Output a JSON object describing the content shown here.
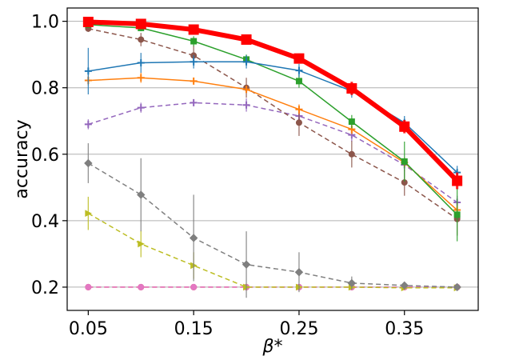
{
  "chart_data": {
    "type": "line",
    "xlabel": "β*",
    "ylabel": "accuracy",
    "x_ticks": [
      0.05,
      0.15,
      0.25,
      0.35
    ],
    "x_tick_labels": [
      "0.05",
      "0.15",
      "0.25",
      "0.35"
    ],
    "y_ticks": [
      0.2,
      0.4,
      0.6,
      0.8,
      1.0
    ],
    "y_tick_labels": [
      "0.2",
      "0.4",
      "0.6",
      "0.8",
      "1.0"
    ],
    "xlim": [
      0.03,
      0.42
    ],
    "ylim": [
      0.13,
      1.04
    ],
    "grid": "horizontal",
    "x": [
      0.05,
      0.1,
      0.15,
      0.2,
      0.25,
      0.3,
      0.35,
      0.4
    ],
    "series": [
      {
        "color": "#ff0000",
        "dashed": false,
        "width": 6,
        "marker": "square",
        "values": [
          0.998,
          0.992,
          0.975,
          0.945,
          0.888,
          0.798,
          0.683,
          0.52
        ],
        "err": [
          0.008,
          0.008,
          0.01,
          0.012,
          0.015,
          0.02,
          0.02,
          0.025
        ]
      },
      {
        "color": "#1f77b4",
        "dashed": false,
        "width": 1.5,
        "marker": "plus",
        "values": [
          0.85,
          0.875,
          0.878,
          0.878,
          0.852,
          0.79,
          0.695,
          0.545
        ],
        "err": [
          0.07,
          0.03,
          0.02,
          0.02,
          0.02,
          0.02,
          0.02,
          0.02
        ]
      },
      {
        "color": "#2ca02c",
        "dashed": false,
        "width": 1.5,
        "marker": "square",
        "values": [
          0.99,
          0.98,
          0.94,
          0.885,
          0.82,
          0.698,
          0.578,
          0.418
        ],
        "err": [
          0.01,
          0.01,
          0.015,
          0.015,
          0.02,
          0.02,
          0.06,
          0.08
        ]
      },
      {
        "color": "#ff7f0e",
        "dashed": false,
        "width": 1.5,
        "marker": "plus",
        "values": [
          0.822,
          0.83,
          0.82,
          0.795,
          0.735,
          0.675,
          0.575,
          0.432
        ],
        "err": [
          0.015,
          0.015,
          0.01,
          0.01,
          0.015,
          0.015,
          0.015,
          0.02
        ]
      },
      {
        "color": "#8c564b",
        "dashed": true,
        "width": 1.5,
        "marker": "circle",
        "values": [
          0.978,
          0.945,
          0.897,
          0.8,
          0.695,
          0.6,
          0.515,
          0.405
        ],
        "err": [
          0.01,
          0.02,
          0.03,
          0.03,
          0.04,
          0.04,
          0.04,
          0.05
        ]
      },
      {
        "color": "#9467bd",
        "dashed": true,
        "width": 1.5,
        "marker": "plus",
        "values": [
          0.69,
          0.74,
          0.755,
          0.748,
          0.715,
          0.658,
          0.568,
          0.455
        ],
        "err": [
          0.015,
          0.015,
          0.01,
          0.02,
          0.02,
          0.02,
          0.02,
          0.02
        ]
      },
      {
        "color": "#7f7f7f",
        "dashed": true,
        "width": 1.5,
        "marker": "diamond",
        "values": [
          0.573,
          0.478,
          0.348,
          0.268,
          0.245,
          0.212,
          0.205,
          0.2
        ],
        "err": [
          0.06,
          0.11,
          0.13,
          0.1,
          0.06,
          0.02,
          0.01,
          0.005
        ]
      },
      {
        "color": "#bcbd22",
        "dashed": true,
        "width": 1.5,
        "marker": "triangle-right",
        "values": [
          0.422,
          0.33,
          0.265,
          0.2,
          0.2,
          0.2,
          0.198,
          0.198
        ],
        "err": [
          0.05,
          0.04,
          0.04,
          0.01,
          0.005,
          0.005,
          0.005,
          0.005
        ]
      },
      {
        "color": "#e377c2",
        "dashed": true,
        "width": 1.5,
        "marker": "circle",
        "values": [
          0.2,
          0.2,
          0.2,
          0.2,
          0.2,
          0.2,
          0.2,
          0.2
        ],
        "err": [
          0.005,
          0.005,
          0.005,
          0.005,
          0.005,
          0.005,
          0.005,
          0.005
        ]
      },
      {
        "color": "#d62728",
        "dashed": true,
        "width": 1.5,
        "marker": "circle",
        "values": [
          0.2,
          0.2,
          0.2,
          0.2,
          0.2,
          0.2,
          0.2,
          0.2
        ],
        "err": [
          0.004,
          0.004,
          0.004,
          0.004,
          0.004,
          0.004,
          0.004,
          0.004
        ]
      }
    ]
  }
}
